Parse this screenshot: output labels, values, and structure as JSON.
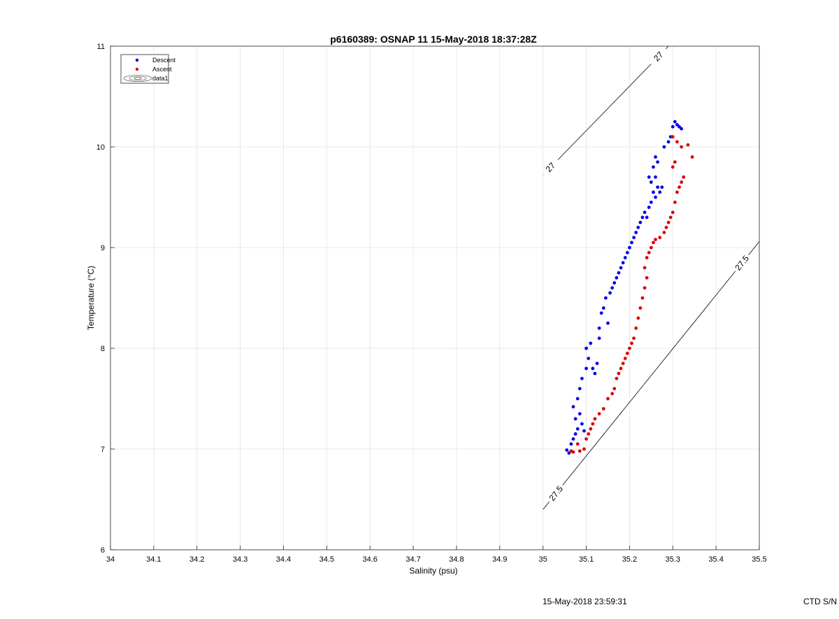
{
  "chart_data": {
    "type": "scatter",
    "title": "p6160389: OSNAP 11 15-May-2018 18:37:28Z",
    "xlabel": "Salinity (psu)",
    "ylabel": "Temperature (°C)",
    "xlim": [
      34,
      35.5
    ],
    "ylim": [
      6,
      11
    ],
    "x_ticks": [
      "34",
      "34.1",
      "34.2",
      "34.3",
      "34.4",
      "34.5",
      "34.6",
      "34.7",
      "34.8",
      "34.9",
      "35",
      "35.1",
      "35.2",
      "35.3",
      "35.4",
      "35.5"
    ],
    "y_ticks": [
      "6",
      "7",
      "8",
      "9",
      "10",
      "11"
    ],
    "grid": true,
    "legend_position": "top-left",
    "legend": [
      "Descent",
      "Ascent",
      "data1"
    ],
    "series": [
      {
        "name": "Descent",
        "color": "#0000ee",
        "points": [
          [
            35.055,
            6.99
          ],
          [
            35.06,
            6.96
          ],
          [
            35.065,
            7.05
          ],
          [
            35.07,
            7.1
          ],
          [
            35.075,
            7.15
          ],
          [
            35.08,
            7.2
          ],
          [
            35.075,
            7.3
          ],
          [
            35.085,
            7.35
          ],
          [
            35.09,
            7.25
          ],
          [
            35.095,
            7.18
          ],
          [
            35.07,
            7.42
          ],
          [
            35.08,
            7.5
          ],
          [
            35.085,
            7.6
          ],
          [
            35.09,
            7.7
          ],
          [
            35.1,
            7.8
          ],
          [
            35.105,
            7.9
          ],
          [
            35.1,
            8.0
          ],
          [
            35.11,
            8.05
          ],
          [
            35.115,
            7.8
          ],
          [
            35.12,
            7.75
          ],
          [
            35.125,
            7.85
          ],
          [
            35.13,
            8.1
          ],
          [
            35.13,
            8.2
          ],
          [
            35.135,
            8.35
          ],
          [
            35.14,
            8.4
          ],
          [
            35.145,
            8.5
          ],
          [
            35.15,
            8.25
          ],
          [
            35.155,
            8.55
          ],
          [
            35.16,
            8.6
          ],
          [
            35.165,
            8.65
          ],
          [
            35.17,
            8.7
          ],
          [
            35.175,
            8.75
          ],
          [
            35.18,
            8.8
          ],
          [
            35.185,
            8.85
          ],
          [
            35.19,
            8.9
          ],
          [
            35.195,
            8.95
          ],
          [
            35.2,
            9.0
          ],
          [
            35.205,
            9.05
          ],
          [
            35.21,
            9.1
          ],
          [
            35.215,
            9.15
          ],
          [
            35.22,
            9.2
          ],
          [
            35.225,
            9.25
          ],
          [
            35.23,
            9.3
          ],
          [
            35.235,
            9.35
          ],
          [
            35.24,
            9.3
          ],
          [
            35.245,
            9.4
          ],
          [
            35.25,
            9.45
          ],
          [
            35.255,
            9.55
          ],
          [
            35.26,
            9.5
          ],
          [
            35.265,
            9.6
          ],
          [
            35.26,
            9.7
          ],
          [
            35.255,
            9.8
          ],
          [
            35.25,
            9.65
          ],
          [
            35.245,
            9.7
          ],
          [
            35.26,
            9.9
          ],
          [
            35.265,
            9.85
          ],
          [
            35.27,
            9.55
          ],
          [
            35.275,
            9.6
          ],
          [
            35.28,
            10.0
          ],
          [
            35.29,
            10.05
          ],
          [
            35.295,
            10.1
          ],
          [
            35.3,
            10.2
          ],
          [
            35.305,
            10.25
          ],
          [
            35.31,
            10.22
          ],
          [
            35.315,
            10.2
          ],
          [
            35.32,
            10.18
          ]
        ]
      },
      {
        "name": "Ascent",
        "color": "#dd0000",
        "points": [
          [
            35.065,
            6.98
          ],
          [
            35.07,
            6.97
          ],
          [
            35.08,
            7.05
          ],
          [
            35.085,
            6.98
          ],
          [
            35.095,
            7.0
          ],
          [
            35.1,
            7.1
          ],
          [
            35.105,
            7.15
          ],
          [
            35.11,
            7.2
          ],
          [
            35.115,
            7.25
          ],
          [
            35.12,
            7.3
          ],
          [
            35.13,
            7.35
          ],
          [
            35.14,
            7.4
          ],
          [
            35.15,
            7.5
          ],
          [
            35.16,
            7.55
          ],
          [
            35.165,
            7.6
          ],
          [
            35.17,
            7.7
          ],
          [
            35.175,
            7.75
          ],
          [
            35.18,
            7.8
          ],
          [
            35.185,
            7.85
          ],
          [
            35.19,
            7.9
          ],
          [
            35.195,
            7.95
          ],
          [
            35.2,
            8.0
          ],
          [
            35.205,
            8.05
          ],
          [
            35.21,
            8.1
          ],
          [
            35.215,
            8.2
          ],
          [
            35.22,
            8.3
          ],
          [
            35.225,
            8.4
          ],
          [
            35.23,
            8.5
          ],
          [
            35.235,
            8.6
          ],
          [
            35.24,
            8.7
          ],
          [
            35.235,
            8.8
          ],
          [
            35.24,
            8.9
          ],
          [
            35.245,
            8.95
          ],
          [
            35.25,
            9.0
          ],
          [
            35.255,
            9.05
          ],
          [
            35.26,
            9.08
          ],
          [
            35.27,
            9.1
          ],
          [
            35.28,
            9.15
          ],
          [
            35.285,
            9.2
          ],
          [
            35.29,
            9.25
          ],
          [
            35.295,
            9.3
          ],
          [
            35.3,
            9.35
          ],
          [
            35.305,
            9.45
          ],
          [
            35.31,
            9.55
          ],
          [
            35.315,
            9.6
          ],
          [
            35.32,
            9.65
          ],
          [
            35.325,
            9.7
          ],
          [
            35.3,
            9.8
          ],
          [
            35.305,
            9.85
          ],
          [
            35.3,
            10.1
          ],
          [
            35.31,
            10.05
          ],
          [
            35.32,
            10.0
          ],
          [
            35.335,
            10.02
          ],
          [
            35.345,
            9.9
          ]
        ]
      }
    ],
    "contours": [
      {
        "level": "27",
        "from": [
          35.0,
          9.72
        ],
        "to": [
          35.29,
          11.0
        ]
      },
      {
        "level": "27.5",
        "from": [
          35.0,
          6.4
        ],
        "to": [
          35.5,
          9.06
        ]
      }
    ]
  },
  "footer": {
    "timestamp": "15-May-2018 23:59:31",
    "ctd": "CTD S/N"
  }
}
